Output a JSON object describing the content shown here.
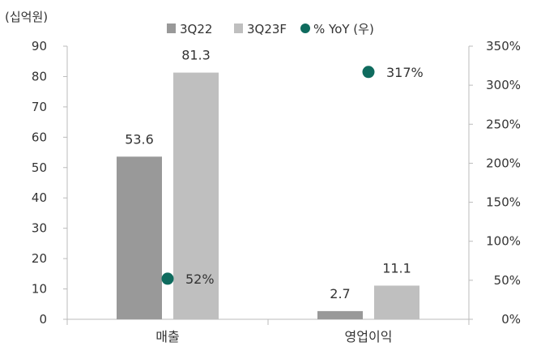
{
  "chart_data": {
    "type": "bar",
    "unit_label": "(십억원)",
    "categories": [
      "매출",
      "영업이익"
    ],
    "series": [
      {
        "name": "3Q22",
        "type": "bar",
        "axis": "left",
        "color": "#999999",
        "values": [
          53.6,
          2.7
        ],
        "labels": [
          "53.6",
          "2.7"
        ]
      },
      {
        "name": "3Q23F",
        "type": "bar",
        "axis": "left",
        "color": "#bfbfbf",
        "values": [
          81.3,
          11.1
        ],
        "labels": [
          "81.3",
          "11.1"
        ]
      },
      {
        "name": "% YoY (우)",
        "type": "scatter",
        "axis": "right",
        "color": "#0f6b5e",
        "values": [
          52,
          317
        ],
        "labels": [
          "52%",
          "317%"
        ]
      }
    ],
    "y_left": {
      "min": 0,
      "max": 90,
      "step": 10,
      "ticks": [
        "0",
        "10",
        "20",
        "30",
        "40",
        "50",
        "60",
        "70",
        "80",
        "90"
      ]
    },
    "y_right": {
      "min": 0,
      "max": 350,
      "step": 50,
      "ticks": [
        "0%",
        "50%",
        "100%",
        "150%",
        "200%",
        "250%",
        "300%",
        "350%"
      ]
    },
    "legend_position": "top-center",
    "grid": false
  }
}
